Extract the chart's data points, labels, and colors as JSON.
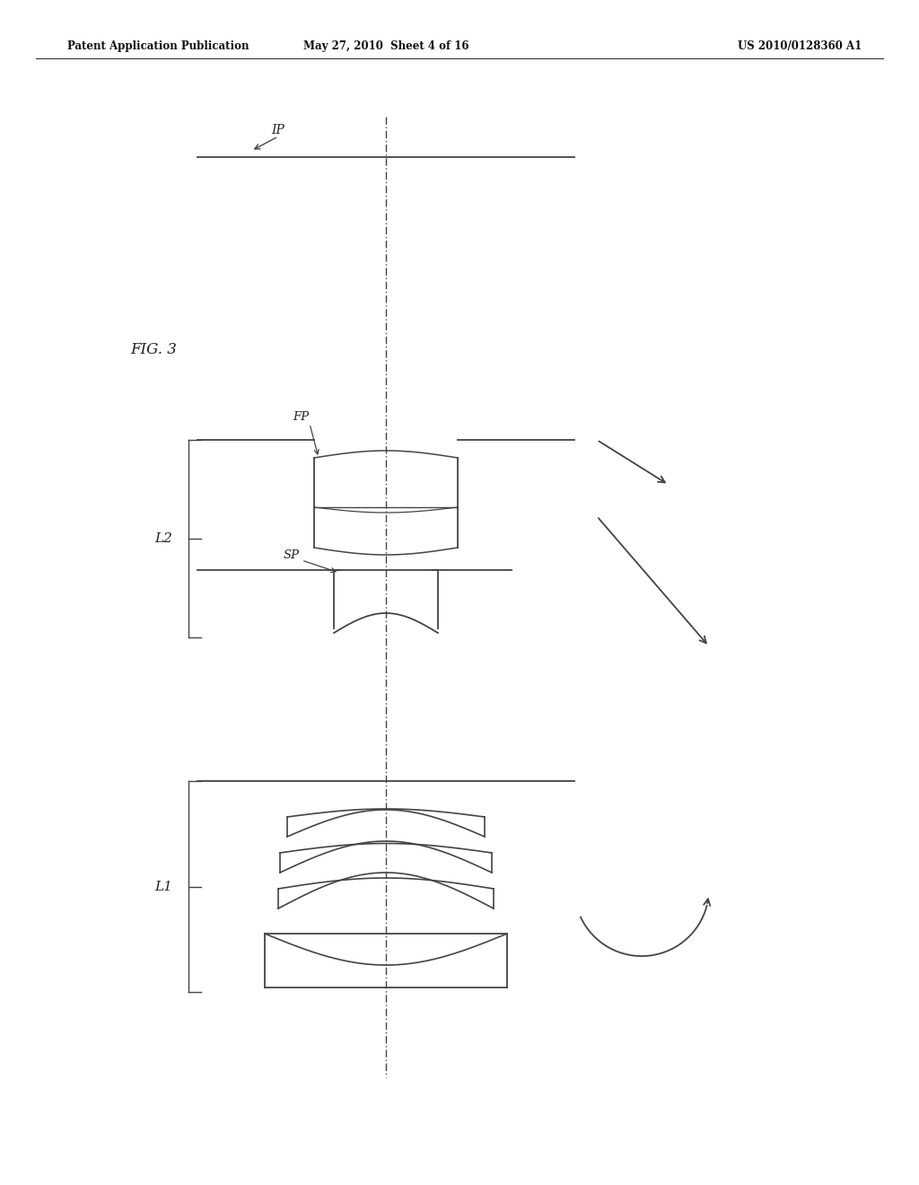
{
  "header_left": "Patent Application Publication",
  "header_mid": "May 27, 2010  Sheet 4 of 16",
  "header_right": "US 2010/0128360 A1",
  "bg_color": "#ffffff",
  "line_color": "#444444",
  "text_color": "#222222"
}
